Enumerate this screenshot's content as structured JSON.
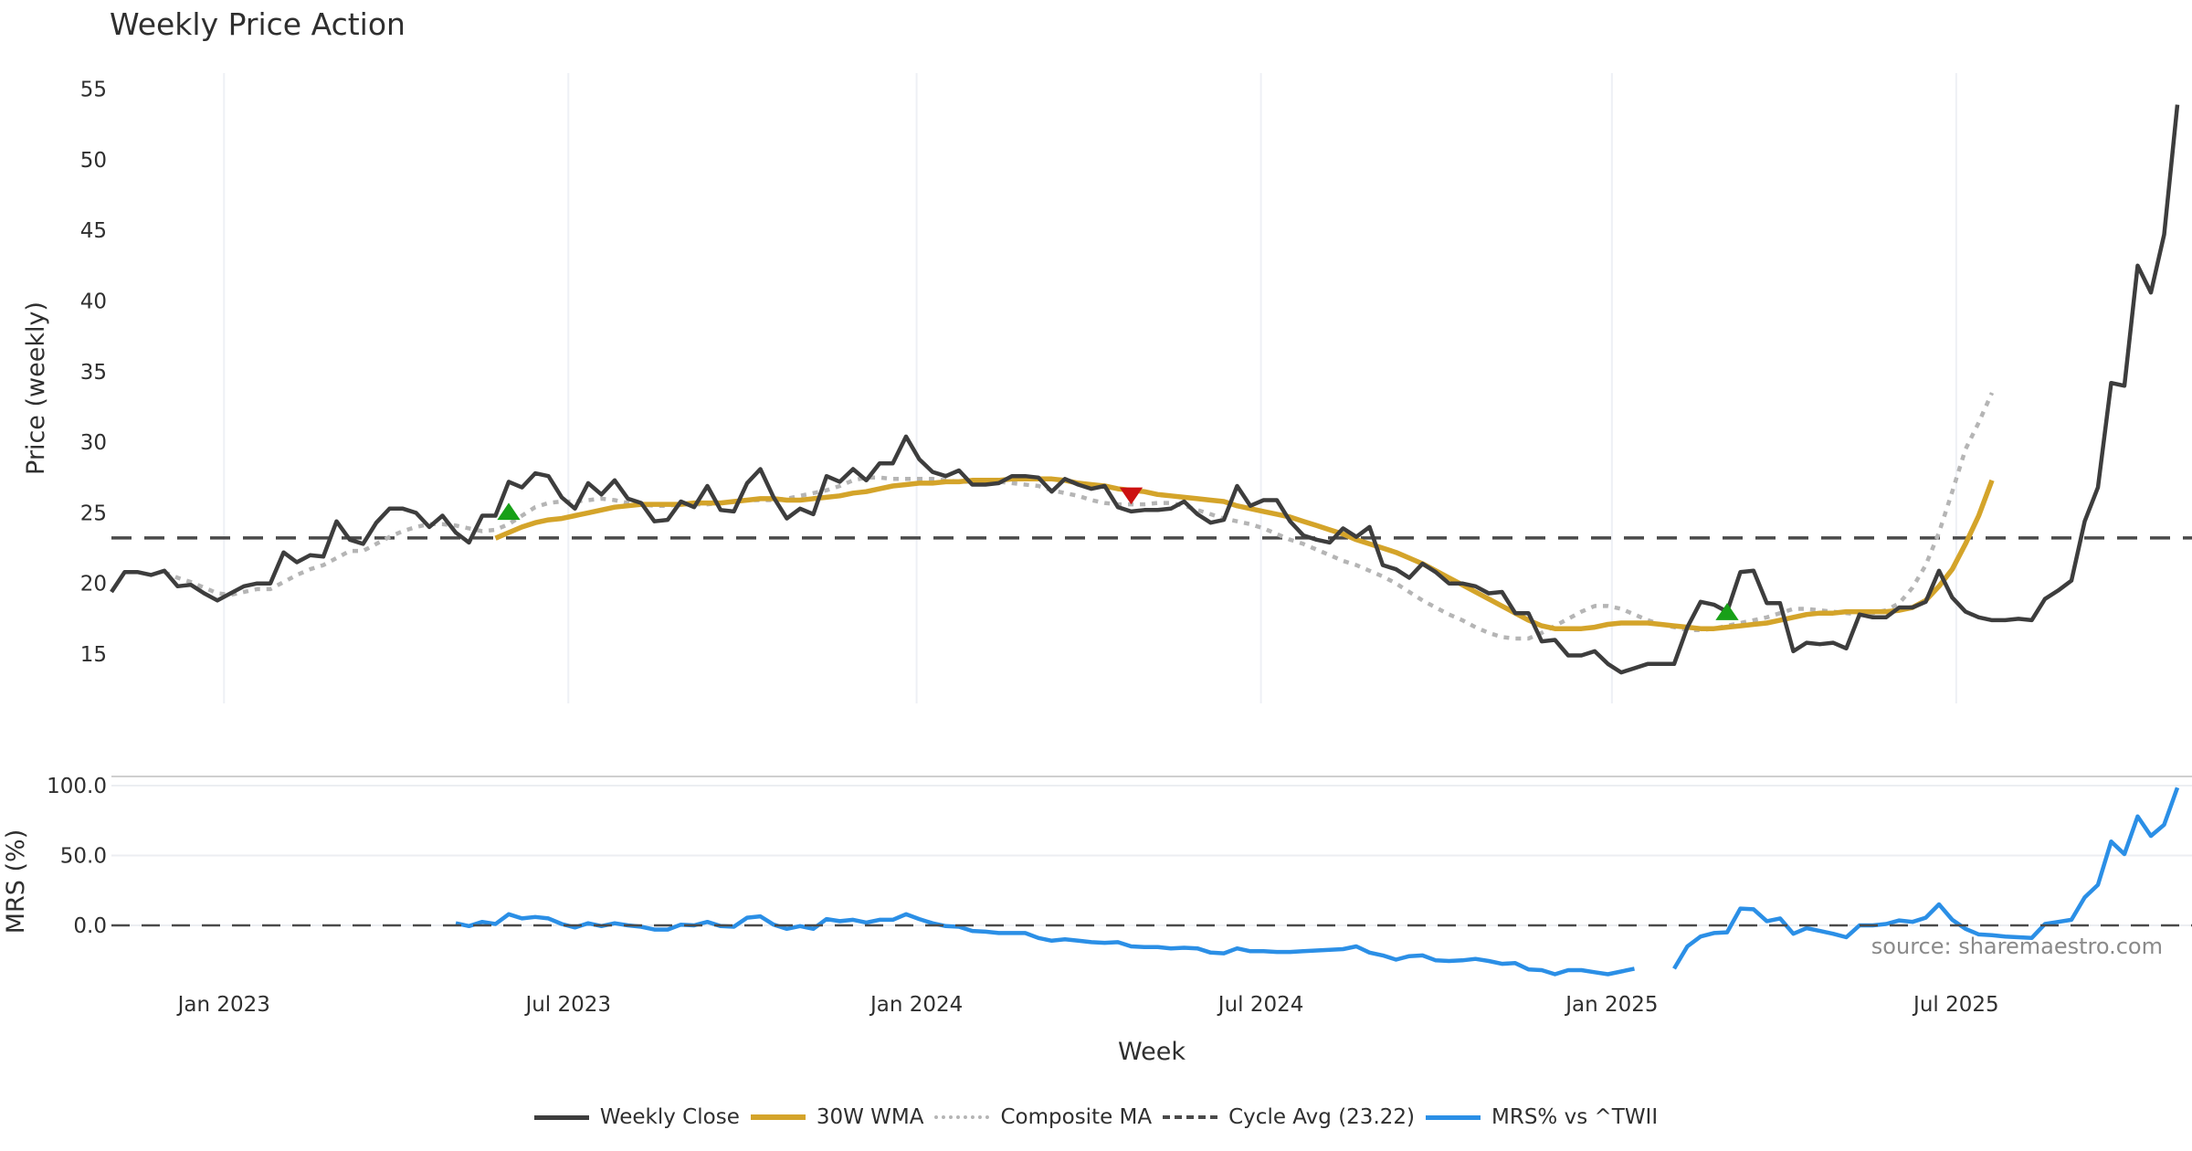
{
  "chart_data": [
    {
      "type": "line",
      "title": "Weekly Price Action",
      "xlabel": "",
      "ylabel": "Price (weekly)",
      "ylim": [
        11.5,
        56.5
      ],
      "yticks": [
        15,
        20,
        25,
        30,
        35,
        40,
        45,
        50,
        55
      ],
      "x_start_week_offset": -8.5,
      "x_ticks": [
        {
          "label": "Jan 2023",
          "week": 0
        },
        {
          "label": "Jul 2023",
          "week": 26
        },
        {
          "label": "Jan 2024",
          "week": 52.3
        },
        {
          "label": "Jul 2024",
          "week": 78.3
        },
        {
          "label": "Jan 2025",
          "week": 104.8
        },
        {
          "label": "Jul 2025",
          "week": 130.8
        }
      ],
      "grid": "vertical",
      "series": [
        {
          "name": "Weekly Close",
          "color": "#3d3d3d",
          "style": "solid",
          "start_index": 0,
          "values": [
            19.4,
            20.8,
            20.8,
            20.6,
            20.9,
            19.8,
            19.9,
            19.3,
            18.8,
            19.3,
            19.8,
            20.0,
            20.0,
            22.2,
            21.5,
            22.0,
            21.9,
            24.4,
            23.1,
            22.8,
            24.3,
            25.3,
            25.3,
            25.0,
            24.0,
            24.8,
            23.6,
            22.9,
            24.8,
            24.8,
            27.2,
            26.8,
            27.8,
            27.6,
            26.1,
            25.3,
            27.1,
            26.3,
            27.3,
            26.0,
            25.7,
            24.4,
            24.5,
            25.8,
            25.4,
            26.9,
            25.2,
            25.1,
            27.1,
            28.1,
            26.1,
            24.6,
            25.3,
            24.9,
            27.6,
            27.2,
            28.1,
            27.3,
            28.5,
            28.5,
            30.4,
            28.8,
            27.9,
            27.6,
            28.0,
            27.0,
            27.0,
            27.1,
            27.6,
            27.6,
            27.5,
            26.5,
            27.4,
            27.0,
            26.7,
            26.9,
            25.4,
            25.1,
            25.2,
            25.2,
            25.3,
            25.8,
            24.9,
            24.3,
            24.5,
            26.9,
            25.5,
            25.9,
            25.9,
            24.4,
            23.4,
            23.1,
            22.9,
            23.9,
            23.3,
            24.0,
            21.3,
            21.0,
            20.4,
            21.4,
            20.8,
            20.0,
            20.0,
            19.8,
            19.3,
            19.4,
            17.9,
            17.9,
            15.9,
            16.0,
            14.9,
            14.9,
            15.2,
            14.3,
            13.7,
            14.0,
            14.3,
            14.3,
            14.3,
            16.9,
            18.7,
            18.5,
            18.0,
            20.8,
            20.9,
            18.6,
            18.6,
            15.2,
            15.8,
            15.7,
            15.8,
            15.4,
            17.8,
            17.6,
            17.6,
            18.3,
            18.3,
            18.7,
            20.9,
            19.0,
            18.0,
            17.6,
            17.4,
            17.4,
            17.5,
            17.4,
            18.9,
            19.5,
            20.2,
            24.4,
            26.8,
            34.2,
            34.0,
            42.5,
            40.6,
            44.7,
            53.9
          ]
        },
        {
          "name": "30W WMA",
          "color": "#d4a42a",
          "style": "solid",
          "start_index": 29,
          "values": [
            23.2,
            23.6,
            24.0,
            24.3,
            24.5,
            24.6,
            24.8,
            25.0,
            25.2,
            25.4,
            25.5,
            25.6,
            25.6,
            25.6,
            25.6,
            25.7,
            25.7,
            25.7,
            25.8,
            25.9,
            26.0,
            26.0,
            25.9,
            25.9,
            26.0,
            26.1,
            26.2,
            26.4,
            26.5,
            26.7,
            26.9,
            27.0,
            27.1,
            27.1,
            27.2,
            27.2,
            27.3,
            27.3,
            27.3,
            27.4,
            27.4,
            27.4,
            27.4,
            27.3,
            27.1,
            27.0,
            26.9,
            26.7,
            26.6,
            26.5,
            26.3,
            26.2,
            26.1,
            26.0,
            25.9,
            25.8,
            25.5,
            25.3,
            25.1,
            24.9,
            24.7,
            24.4,
            24.1,
            23.8,
            23.5,
            23.1,
            22.8,
            22.5,
            22.2,
            21.8,
            21.4,
            20.9,
            20.4,
            19.9,
            19.4,
            18.9,
            18.4,
            17.9,
            17.4,
            17.0,
            16.8,
            16.8,
            16.8,
            16.9,
            17.1,
            17.2,
            17.2,
            17.2,
            17.1,
            17.0,
            16.9,
            16.8,
            16.8,
            16.9,
            17.0,
            17.1,
            17.2,
            17.4,
            17.6,
            17.8,
            17.9,
            17.9,
            18.0,
            18.0,
            18.0,
            18.0,
            18.1,
            18.3,
            18.8,
            19.8,
            21.0,
            22.8,
            24.8,
            27.3
          ]
        },
        {
          "name": "Composite MA",
          "color": "#b5b5b5",
          "style": "dotted",
          "start_index": 4,
          "values": [
            20.8,
            20.4,
            20.1,
            19.7,
            19.3,
            19.2,
            19.4,
            19.6,
            19.6,
            20.1,
            20.6,
            21.0,
            21.3,
            21.8,
            22.3,
            22.3,
            22.8,
            23.3,
            23.7,
            24.0,
            24.2,
            24.2,
            24.1,
            23.9,
            23.7,
            23.8,
            24.2,
            24.8,
            25.4,
            25.7,
            25.8,
            25.8,
            25.9,
            26.0,
            25.9,
            25.7,
            25.6,
            25.5,
            25.5,
            25.6,
            25.6,
            25.6,
            25.7,
            25.8,
            25.9,
            25.9,
            25.9,
            26.0,
            26.2,
            26.4,
            26.6,
            26.9,
            27.3,
            27.5,
            27.5,
            27.4,
            27.4,
            27.4,
            27.4,
            27.3,
            27.2,
            27.2,
            27.2,
            27.2,
            27.1,
            27.0,
            26.9,
            26.6,
            26.4,
            26.2,
            25.9,
            25.7,
            25.6,
            25.6,
            25.6,
            25.7,
            25.7,
            25.5,
            25.2,
            24.9,
            24.6,
            24.4,
            24.2,
            23.9,
            23.5,
            23.1,
            22.8,
            22.4,
            22.0,
            21.6,
            21.3,
            20.9,
            20.5,
            20.0,
            19.4,
            18.8,
            18.3,
            17.8,
            17.4,
            16.9,
            16.5,
            16.2,
            16.1,
            16.1,
            16.5,
            17.0,
            17.5,
            18.0,
            18.4,
            18.4,
            18.2,
            17.8,
            17.4,
            17.1,
            16.9,
            16.7,
            16.7,
            16.8,
            17.0,
            17.2,
            17.4,
            17.6,
            17.9,
            18.2,
            18.2,
            18.1,
            18.0,
            17.9,
            17.8,
            17.9,
            18.1,
            18.6,
            19.7,
            21.3,
            23.6,
            26.5,
            29.5,
            31.4,
            33.5
          ]
        },
        {
          "name": "Cycle Avg (23.22)",
          "color": "#4a4a4a",
          "style": "dashed",
          "constant": 23.22
        }
      ],
      "markers": [
        {
          "type": "buy",
          "shape": "triangle-up",
          "color": "#18a018",
          "index": 30,
          "value": 25.0
        },
        {
          "type": "sell",
          "shape": "triangle-down",
          "color": "#cc1111",
          "index": 77,
          "value": 26.3
        },
        {
          "type": "buy",
          "shape": "triangle-up",
          "color": "#18a018",
          "index": 122,
          "value": 17.9
        }
      ]
    },
    {
      "type": "line",
      "title": "",
      "xlabel": "Week",
      "ylabel": "MRS (%)",
      "ylim": [
        -33,
        107
      ],
      "yticks": [
        0.0,
        50.0,
        100.0
      ],
      "series": [
        {
          "name": "MRS% vs ^TWII",
          "color": "#2b8fe6",
          "style": "solid",
          "segments": [
            {
              "start_index": 26,
              "values": [
                1.5,
                -0.5,
                2.5,
                1.0,
                8.0,
                5.0,
                6.0,
                5.0,
                1.0,
                -1.5,
                1.5,
                -0.5,
                1.5,
                0.0,
                -1.0,
                -3.0,
                -3.0,
                0.5,
                0.0,
                2.5,
                -0.5,
                -1.0,
                5.5,
                6.5,
                0.5,
                -2.5,
                -0.5,
                -2.5,
                4.5,
                3.0,
                4.0,
                2.0,
                4.0,
                4.0,
                8.0,
                4.5,
                1.5,
                -0.5,
                -1.0,
                -4.0,
                -4.5,
                -5.5,
                -5.5,
                -5.5,
                -9.0,
                -11.0,
                -10.0,
                -11.0,
                -12.0,
                -12.5,
                -12.0,
                -15.0,
                -15.5,
                -15.5,
                -16.5,
                -16.0,
                -16.5,
                -19.5,
                -20.0,
                -16.5,
                -18.5,
                -18.5,
                -19.0,
                -19.0,
                -18.5,
                -18.0,
                -17.5,
                -17.0,
                -15.0,
                -19.5,
                -21.5,
                -24.5,
                -22.0,
                -21.5,
                -25.0,
                -25.5,
                -25.0,
                -24.0,
                -25.5,
                -27.5,
                -27.0,
                -31.5,
                -32.0,
                -35.0,
                -32.0,
                -32.0,
                -33.5,
                -35.0,
                -33.0,
                -31.0
              ]
            },
            {
              "start_index": 118,
              "values": [
                -31.0,
                -15.0,
                -8.0,
                -5.5,
                -5.0,
                12.0,
                11.5,
                3.0,
                5.0,
                -6.0,
                -2.0,
                -4.0,
                -6.0,
                -8.5,
                0.0,
                0.0,
                1.0,
                3.5,
                2.5,
                5.5,
                15.0,
                4.0,
                -2.5,
                -6.5,
                -7.0,
                -8.0,
                -8.5,
                -9.0,
                1.0,
                2.5,
                4.0,
                20.0,
                29.0,
                60.0,
                51.0,
                78.0,
                64.0,
                72.0,
                98.5
              ]
            }
          ]
        },
        {
          "name": "Zero line",
          "color": "#4a4a4a",
          "style": "dashed",
          "constant": 0
        }
      ],
      "annotation": "source: sharemaestro.com"
    }
  ],
  "header": {
    "title": "Weekly Price Action"
  },
  "axes": {
    "price_ylabel": "Price (weekly)",
    "mrs_ylabel": "MRS (%)",
    "xlabel": "Week"
  },
  "legend": {
    "position": "bottom-center",
    "items": [
      {
        "label": "Weekly Close",
        "color": "#3d3d3d",
        "style": "solid"
      },
      {
        "label": "30W WMA",
        "color": "#d4a42a",
        "style": "solid"
      },
      {
        "label": "Composite MA",
        "color": "#b5b5b5",
        "style": "dotted"
      },
      {
        "label": "Cycle Avg (23.22)",
        "color": "#4a4a4a",
        "style": "dashed"
      },
      {
        "label": "MRS% vs ^TWII",
        "color": "#2b8fe6",
        "style": "solid"
      }
    ]
  },
  "source": "source: sharemaestro.com"
}
